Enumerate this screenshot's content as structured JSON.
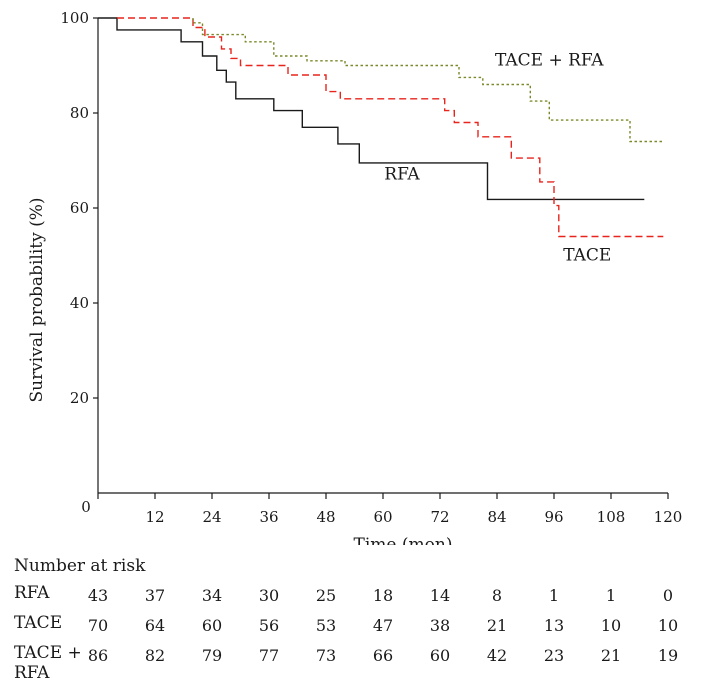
{
  "chart_data": {
    "type": "line",
    "subtype": "kaplan-meier",
    "xlabel": "Time (mon)",
    "ylabel": "Survival probability  (%)",
    "xlim": [
      0,
      120
    ],
    "ylim": [
      0,
      100
    ],
    "x_ticks": [
      0,
      12,
      24,
      36,
      48,
      60,
      72,
      84,
      96,
      108,
      120
    ],
    "y_ticks": [
      20,
      40,
      60,
      80,
      100
    ],
    "grid": false,
    "series": [
      {
        "name": "RFA",
        "label": "RFA",
        "color": "#1a1a1a",
        "dash": "solid",
        "points": [
          [
            0,
            100
          ],
          [
            4,
            100
          ],
          [
            4,
            97.5
          ],
          [
            17.5,
            97.5
          ],
          [
            17.5,
            95
          ],
          [
            22,
            95
          ],
          [
            22,
            92
          ],
          [
            25,
            92
          ],
          [
            25,
            89
          ],
          [
            27,
            89
          ],
          [
            27,
            86.5
          ],
          [
            29,
            86.5
          ],
          [
            29,
            83
          ],
          [
            37,
            83
          ],
          [
            37,
            80.5
          ],
          [
            43,
            80.5
          ],
          [
            43,
            77
          ],
          [
            50.5,
            77
          ],
          [
            50.5,
            73.5
          ],
          [
            55,
            73.5
          ],
          [
            55,
            69.5
          ],
          [
            82,
            69.5
          ],
          [
            82,
            61.8
          ],
          [
            115,
            61.8
          ]
        ]
      },
      {
        "name": "TACE",
        "label": "TACE",
        "color": "#e8241c",
        "dash": "dashed",
        "points": [
          [
            4,
            100
          ],
          [
            20,
            100
          ],
          [
            20,
            98
          ],
          [
            22.5,
            98
          ],
          [
            22.5,
            96
          ],
          [
            26,
            96
          ],
          [
            26,
            93.5
          ],
          [
            28,
            93.5
          ],
          [
            28,
            91.5
          ],
          [
            30,
            91.5
          ],
          [
            30,
            90
          ],
          [
            40,
            90
          ],
          [
            40,
            88
          ],
          [
            48,
            88
          ],
          [
            48,
            84.5
          ],
          [
            51,
            84.5
          ],
          [
            51,
            83
          ],
          [
            73,
            83
          ],
          [
            73,
            80.5
          ],
          [
            75,
            80.5
          ],
          [
            75,
            78
          ],
          [
            80,
            78
          ],
          [
            80,
            75
          ],
          [
            87,
            75
          ],
          [
            87,
            70.5
          ],
          [
            93,
            70.5
          ],
          [
            93,
            65.5
          ],
          [
            96,
            65.5
          ],
          [
            96,
            60.5
          ],
          [
            97,
            60.5
          ],
          [
            97,
            54
          ],
          [
            119,
            54
          ]
        ]
      },
      {
        "name": "TACE + RFA",
        "label": "TACE + RFA",
        "color": "#7a8a2a",
        "dash": "dotted",
        "points": [
          [
            20,
            100
          ],
          [
            20,
            99
          ],
          [
            22,
            99
          ],
          [
            22,
            96.5
          ],
          [
            31,
            96.5
          ],
          [
            31,
            95
          ],
          [
            37,
            95
          ],
          [
            37,
            92
          ],
          [
            44,
            92
          ],
          [
            44,
            91
          ],
          [
            52,
            91
          ],
          [
            52,
            90
          ],
          [
            76,
            90
          ],
          [
            76,
            87.5
          ],
          [
            81,
            87.5
          ],
          [
            81,
            86
          ],
          [
            91,
            86
          ],
          [
            91,
            82.5
          ],
          [
            95,
            82.5
          ],
          [
            95,
            78.5
          ],
          [
            112,
            78.5
          ],
          [
            112,
            74
          ],
          [
            119,
            74
          ]
        ]
      }
    ]
  },
  "risk_table": {
    "title": "Number at risk",
    "rows": [
      {
        "label": "RFA",
        "values": [
          "43",
          "37",
          "34",
          "30",
          "25",
          "18",
          "14",
          "8",
          "1",
          "1",
          "0"
        ]
      },
      {
        "label": "TACE",
        "values": [
          "70",
          "64",
          "60",
          "56",
          "53",
          "47",
          "38",
          "21",
          "13",
          "10",
          "10"
        ]
      },
      {
        "label": "TACE +\nRFA",
        "values": [
          "86",
          "82",
          "79",
          "77",
          "73",
          "66",
          "60",
          "42",
          "23",
          "21",
          "19"
        ]
      }
    ]
  }
}
